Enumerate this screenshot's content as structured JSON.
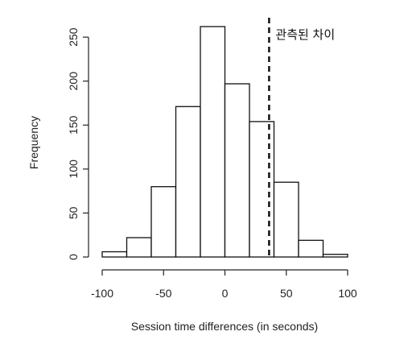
{
  "chart_data": {
    "type": "bar",
    "subtype": "histogram",
    "xlabel": "Session time differences (in seconds)",
    "ylabel": "Frequency",
    "bins": [
      {
        "x0": -100,
        "x1": -80,
        "value": 6
      },
      {
        "x0": -80,
        "x1": -60,
        "value": 22
      },
      {
        "x0": -60,
        "x1": -40,
        "value": 80
      },
      {
        "x0": -40,
        "x1": -20,
        "value": 171
      },
      {
        "x0": -20,
        "x1": 0,
        "value": 262
      },
      {
        "x0": 0,
        "x1": 20,
        "value": 197
      },
      {
        "x0": 20,
        "x1": 40,
        "value": 154
      },
      {
        "x0": 40,
        "x1": 60,
        "value": 85
      },
      {
        "x0": 60,
        "x1": 80,
        "value": 19
      },
      {
        "x0": 80,
        "x1": 100,
        "value": 3
      }
    ],
    "x_ticks": [
      -100,
      -50,
      0,
      50,
      100
    ],
    "x_tick_labels": [
      "-100",
      "-50",
      "0",
      "50",
      "100"
    ],
    "y_ticks": [
      0,
      50,
      100,
      150,
      200,
      250
    ],
    "y_tick_labels": [
      "0",
      "50",
      "100",
      "150",
      "200",
      "250"
    ],
    "xlim": [
      -100,
      100
    ],
    "ylim": [
      0,
      262
    ],
    "grid": false,
    "reference_line": {
      "x": 36,
      "style": "dashed",
      "label": "관측된 차이"
    },
    "colors": {
      "bar_fill": "#ffffff",
      "bar_stroke": "#111111",
      "line": "#111111"
    }
  }
}
